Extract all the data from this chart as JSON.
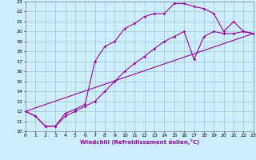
{
  "xlabel": "Windchill (Refroidissement éolien,°C)",
  "background_color": "#cceeff",
  "grid_color": "#aacccc",
  "line_color": "#990099",
  "xlim": [
    0,
    23
  ],
  "ylim": [
    10,
    23
  ],
  "xticks": [
    0,
    1,
    2,
    3,
    4,
    5,
    6,
    7,
    8,
    9,
    10,
    11,
    12,
    13,
    14,
    15,
    16,
    17,
    18,
    19,
    20,
    21,
    22,
    23
  ],
  "yticks": [
    10,
    11,
    12,
    13,
    14,
    15,
    16,
    17,
    18,
    19,
    20,
    21,
    22,
    23
  ],
  "line1_x": [
    0,
    1,
    2,
    3,
    4,
    5,
    6,
    7,
    8,
    9,
    10,
    11,
    12,
    13,
    14,
    15,
    16,
    17,
    18,
    19,
    20,
    21,
    22,
    23
  ],
  "line1_y": [
    12,
    11.5,
    10.5,
    10.5,
    11.8,
    12.2,
    12.7,
    17.0,
    18.5,
    19.0,
    20.3,
    20.8,
    21.5,
    21.8,
    21.8,
    22.8,
    22.8,
    22.5,
    22.3,
    21.8,
    20.0,
    21.0,
    20.0,
    19.8
  ],
  "line2_x": [
    0,
    1,
    2,
    3,
    4,
    5,
    6,
    7,
    8,
    9,
    10,
    11,
    12,
    13,
    14,
    15,
    16,
    17,
    18,
    19,
    20,
    21,
    22,
    23
  ],
  "line2_y": [
    12,
    11.5,
    10.5,
    10.5,
    11.5,
    12.0,
    12.5,
    13.0,
    14.0,
    15.0,
    16.0,
    16.8,
    17.5,
    18.3,
    19.0,
    19.5,
    20.0,
    17.2,
    19.5,
    20.0,
    19.8,
    19.8,
    20.0,
    19.8
  ],
  "line3_x": [
    0,
    23
  ],
  "line3_y": [
    12,
    19.8
  ]
}
